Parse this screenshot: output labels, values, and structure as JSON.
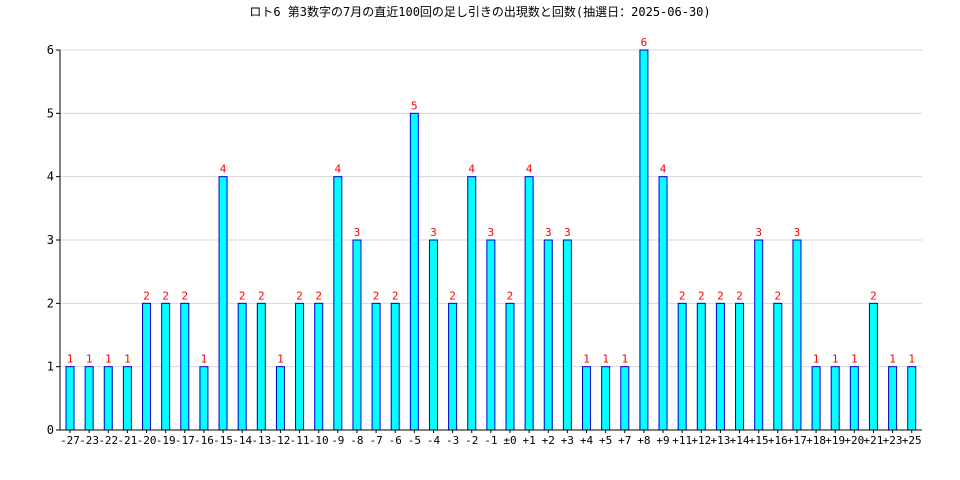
{
  "chart_data": {
    "type": "bar",
    "title": "ロト6 第3数字の7月の直近100回の足し引きの出現数と回数(抽選日：2025-06-30)",
    "categories": [
      "-27",
      "-23",
      "-22",
      "-21",
      "-20",
      "-19",
      "-17",
      "-16",
      "-15",
      "-14",
      "-13",
      "-12",
      "-11",
      "-10",
      "-9",
      "-8",
      "-7",
      "-6",
      "-5",
      "-4",
      "-3",
      "-2",
      "-1",
      "±0",
      "+1",
      "+2",
      "+3",
      "+4",
      "+5",
      "+7",
      "+8",
      "+9",
      "+11",
      "+12",
      "+13",
      "+14",
      "+15",
      "+16",
      "+17",
      "+18",
      "+19",
      "+20",
      "+21",
      "+23",
      "+25"
    ],
    "values": [
      1,
      1,
      1,
      1,
      2,
      2,
      2,
      1,
      4,
      2,
      2,
      1,
      2,
      2,
      4,
      3,
      2,
      2,
      5,
      3,
      2,
      4,
      3,
      2,
      4,
      3,
      3,
      1,
      1,
      1,
      6,
      4,
      2,
      2,
      2,
      2,
      3,
      2,
      3,
      1,
      1,
      1,
      2,
      1,
      1
    ],
    "ylim": [
      0,
      6
    ],
    "yticks": [
      0,
      1,
      2,
      3,
      4,
      5,
      6
    ],
    "grid": true,
    "colors": {
      "bar_fill": "#00ffff",
      "bar_stroke": "#0000cc",
      "data_label": "#ff0000",
      "grid": "#d8d8d8",
      "axis": "#000000"
    }
  }
}
